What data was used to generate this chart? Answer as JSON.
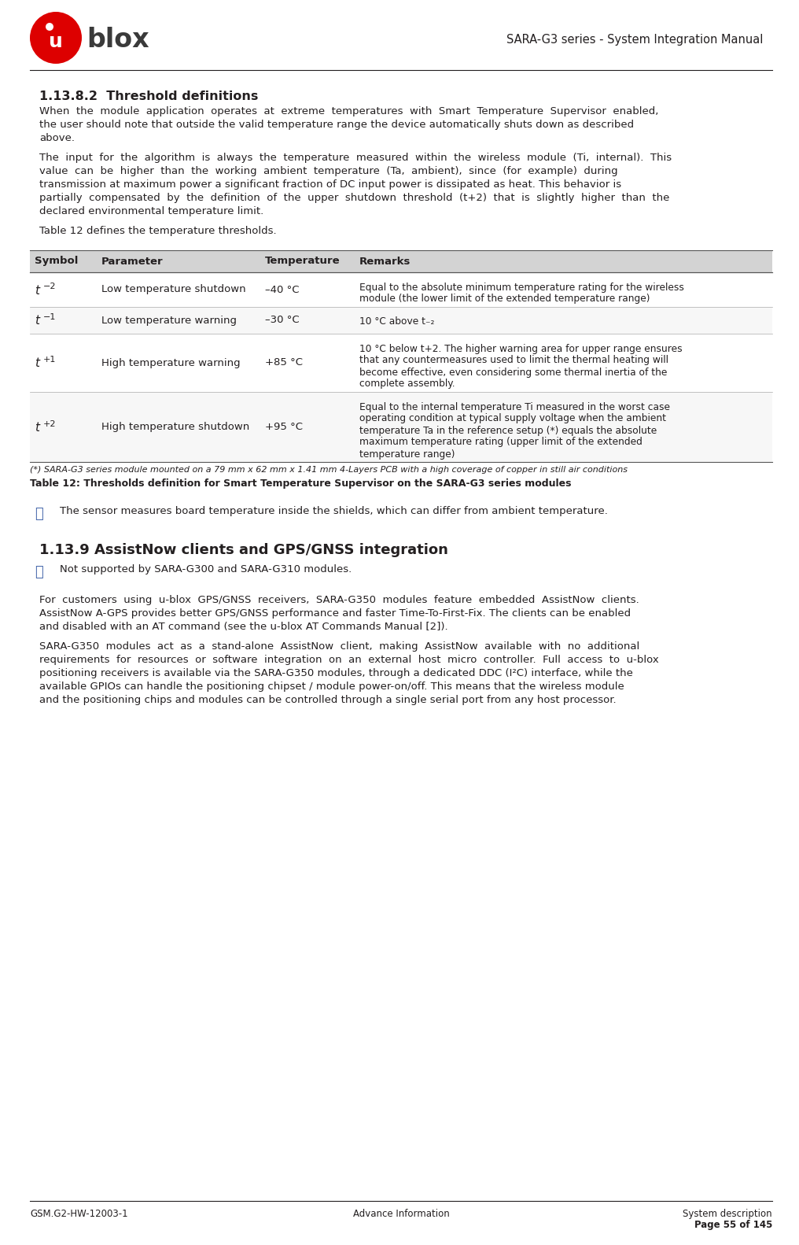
{
  "header_title": "SARA-G3 series - System Integration Manual",
  "section_title": "1.13.8.2  Threshold definitions",
  "para1_lines": [
    "When  the  module  application  operates  at  extreme  temperatures  with  Smart  Temperature  Supervisor  enabled,",
    "the user should note that outside the valid temperature range the device automatically shuts down as described",
    "above."
  ],
  "para2_lines": [
    "The  input  for  the  algorithm  is  always  the  temperature  measured  within  the  wireless  module  (Ti,  internal).  This",
    "value  can  be  higher  than  the  working  ambient  temperature  (Ta,  ambient),  since  (for  example)  during",
    "transmission at maximum power a significant fraction of DC input power is dissipated as heat. This behavior is",
    "partially  compensated  by  the  definition  of  the  upper  shutdown  threshold  (t+2)  that  is  slightly  higher  than  the",
    "declared environmental temperature limit."
  ],
  "para3": "Table 12 defines the temperature thresholds.",
  "table_header": [
    "Symbol",
    "Parameter",
    "Temperature",
    "Remarks"
  ],
  "table_rows": [
    {
      "sym": "t",
      "sub": "−2",
      "parameter": "Low temperature shutdown",
      "temperature": "–40 °C",
      "remarks": [
        "Equal to the absolute minimum temperature rating for the wireless",
        "module (the lower limit of the extended temperature range)"
      ]
    },
    {
      "sym": "t",
      "sub": "−1",
      "parameter": "Low temperature warning",
      "temperature": "–30 °C",
      "remarks": [
        "10 °C above t₋₂"
      ]
    },
    {
      "sym": "t",
      "sub": "+1",
      "parameter": "High temperature warning",
      "temperature": "+85 °C",
      "remarks": [
        "10 °C below t+2. The higher warning area for upper range ensures",
        "that any countermeasures used to limit the thermal heating will",
        "become effective, even considering some thermal inertia of the",
        "complete assembly."
      ]
    },
    {
      "sym": "t",
      "sub": "+2",
      "parameter": "High temperature shutdown",
      "temperature": "+95 °C",
      "remarks": [
        "Equal to the internal temperature Ti measured in the worst case",
        "operating condition at typical supply voltage when the ambient",
        "temperature Ta in the reference setup (*) equals the absolute",
        "maximum temperature rating (upper limit of the extended",
        "temperature range)"
      ]
    }
  ],
  "table_footnote": "(*) SARA-G3 series module mounted on a 79 mm x 62 mm x 1.41 mm 4-Layers PCB with a high coverage of copper in still air conditions",
  "table_caption": "Table 12: Thresholds definition for Smart Temperature Supervisor on the SARA-G3 series modules",
  "note1_text": "The sensor measures board temperature inside the shields, which can differ from ambient temperature.",
  "section2_title": "1.13.9 AssistNow clients and GPS/GNSS integration",
  "note2_text": "Not supported by SARA-G300 and SARA-G310 modules.",
  "para4_lines": [
    "For  customers  using  u-blox  GPS/GNSS  receivers,  SARA-G350  modules  feature  embedded  AssistNow  clients.",
    "AssistNow A-GPS provides better GPS/GNSS performance and faster Time-To-First-Fix. The clients can be enabled",
    "and disabled with an AT command (see the u-blox AT Commands Manual [2])."
  ],
  "para5_lines": [
    "SARA-G350  modules  act  as  a  stand-alone  AssistNow  client,  making  AssistNow  available  with  no  additional",
    "requirements  for  resources  or  software  integration  on  an  external  host  micro  controller.  Full  access  to  u-blox",
    "positioning receivers is available via the SARA-G350 modules, through a dedicated DDC (I²C) interface, while the",
    "available GPIOs can handle the positioning chipset / module power-on/off. This means that the wireless module",
    "and the positioning chips and modules can be controlled through a single serial port from any host processor."
  ],
  "footer_left": "GSM.G2-HW-12003-1",
  "footer_center": "Advance Information",
  "footer_right": "System description",
  "footer_page": "Page 55 of 145",
  "bg_color": "#ffffff",
  "text_color": "#231f20"
}
